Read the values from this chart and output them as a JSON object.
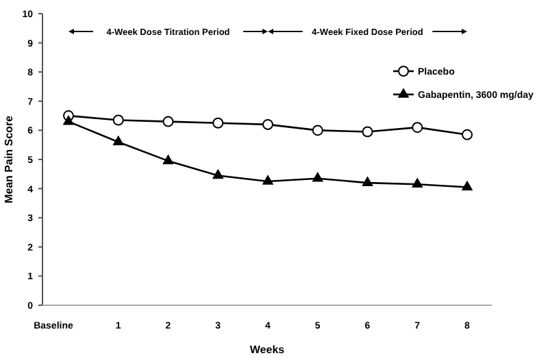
{
  "chart_data": {
    "type": "line",
    "xlabel": "Weeks",
    "ylabel": "Mean Pain Score",
    "categories": [
      "Baseline",
      "1",
      "2",
      "3",
      "4",
      "5",
      "6",
      "7",
      "8"
    ],
    "series": [
      {
        "name": "Placebo",
        "color": "#000000",
        "marker": "circle",
        "values": [
          6.5,
          6.35,
          6.3,
          6.25,
          6.2,
          6.0,
          5.95,
          6.1,
          5.85
        ]
      },
      {
        "name": "Gabapentin, 3600 mg/day",
        "color": "#000000",
        "marker": "triangle",
        "values": [
          6.3,
          5.6,
          4.95,
          4.45,
          4.25,
          4.35,
          4.2,
          4.15,
          4.05
        ]
      }
    ],
    "ylim": [
      0,
      10
    ],
    "yticks": [
      0,
      1,
      2,
      3,
      4,
      5,
      6,
      7,
      8,
      9,
      10
    ],
    "grid": false,
    "legend": "top right",
    "annotations": [
      "4-Week Dose Titration Period",
      "4-Week Fixed Dose Period"
    ]
  }
}
